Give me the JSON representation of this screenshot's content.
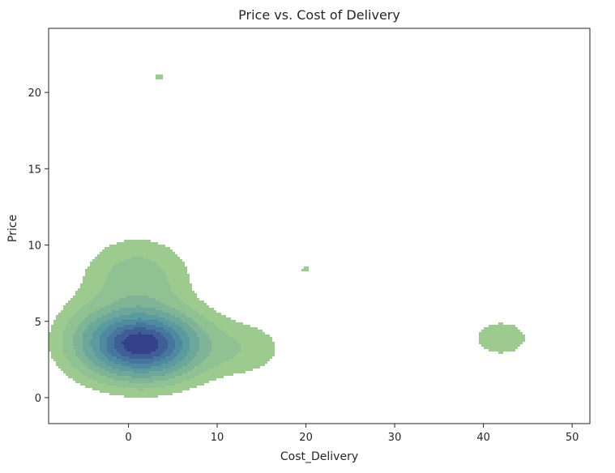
{
  "chart_data": {
    "type": "kde-contour",
    "title": "Price vs. Cost of Delivery",
    "xlabel": "Cost_Delivery",
    "ylabel": "Price",
    "xlim": [
      -9,
      52
    ],
    "ylim": [
      -1.7,
      24.2
    ],
    "xticks": [
      0,
      10,
      20,
      30,
      40,
      50
    ],
    "yticks": [
      0,
      5,
      10,
      15,
      20
    ],
    "grid": false,
    "colors": {
      "levels": [
        "#9dca8f",
        "#8fc193",
        "#7fb596",
        "#6ca79a",
        "#5b9a9e",
        "#4f89a0",
        "#46759d",
        "#3e5e95",
        "#33408a"
      ]
    },
    "density_components": [
      {
        "x": 1.5,
        "y": 3.5,
        "weight": 1.0,
        "sx": 4.0,
        "sy": 1.4
      },
      {
        "x": 1.0,
        "y": 7.8,
        "weight": 0.16,
        "sx": 3.6,
        "sy": 1.6
      },
      {
        "x": 12.5,
        "y": 3.2,
        "weight": 0.09,
        "sx": 3.4,
        "sy": 1.2
      },
      {
        "x": -4.0,
        "y": 4.2,
        "weight": 0.07,
        "sx": 2.8,
        "sy": 1.6
      },
      {
        "x": 3.5,
        "y": 21.0,
        "weight": 0.05,
        "sx": 1.0,
        "sy": 0.35
      },
      {
        "x": 20.0,
        "y": 8.4,
        "weight": 0.05,
        "sx": 1.0,
        "sy": 0.35
      },
      {
        "x": 42.0,
        "y": 3.9,
        "weight": 0.075,
        "sx": 2.6,
        "sy": 0.95
      }
    ],
    "levels": [
      0.045,
      0.11,
      0.2,
      0.3,
      0.42,
      0.54,
      0.66,
      0.78,
      0.9
    ]
  }
}
